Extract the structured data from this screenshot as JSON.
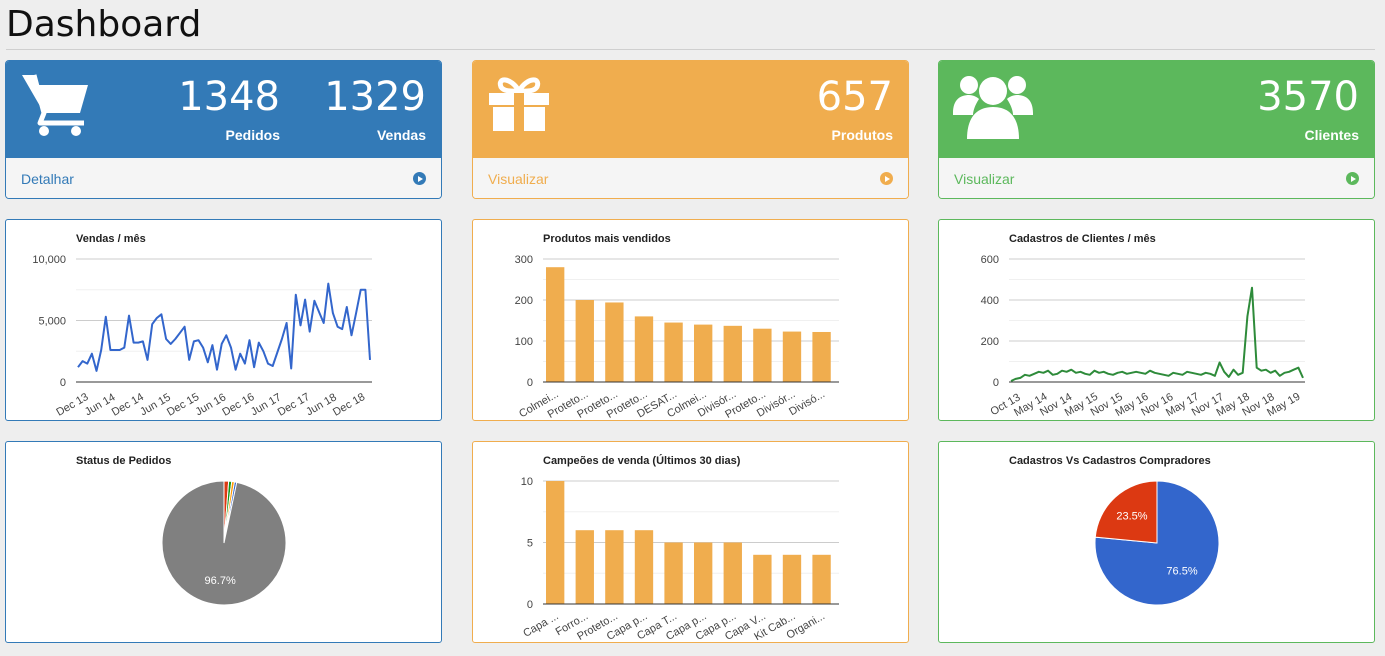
{
  "page": {
    "title": "Dashboard"
  },
  "stats": {
    "pedidos": {
      "value": "1348",
      "label": "Pedidos"
    },
    "vendas": {
      "value": "1329",
      "label": "Vendas"
    },
    "detalhar_link": "Detalhar",
    "produtos": {
      "value": "657",
      "label": "Produtos",
      "link": "Visualizar"
    },
    "clientes": {
      "value": "3570",
      "label": "Clientes",
      "link": "Visualizar"
    }
  },
  "icons": {
    "pedidos": "shopping-cart-icon",
    "produtos": "gift-icon",
    "clientes": "users-icon",
    "link_arrow": "arrow-circle-right-icon"
  },
  "colors": {
    "primary": "#337ab7",
    "warning": "#f0ad4e",
    "success": "#5cb85c",
    "line_sales": "#3366cc",
    "line_clients": "#2e8b3a",
    "pie_gray": "#808080",
    "pie_blue": "#3366cc",
    "pie_red": "#dc3912"
  },
  "chart_data": [
    {
      "id": "vendas_mes",
      "type": "line",
      "title": "Vendas / mês",
      "ylim": [
        0,
        10000
      ],
      "yticks": [
        0,
        5000,
        10000
      ],
      "ytick_labels": [
        "0",
        "5,000",
        "10,000"
      ],
      "xtick_labels": [
        "Dec 13",
        "Jun 14",
        "Dec 14",
        "Jun 15",
        "Dec 15",
        "Jun 16",
        "Dec 16",
        "Jun 17",
        "Dec 17",
        "Jun 18",
        "Dec 18"
      ],
      "values": [
        1200,
        1700,
        1500,
        2300,
        900,
        2600,
        5300,
        2600,
        2600,
        2600,
        2800,
        5400,
        3200,
        3200,
        3300,
        1800,
        4700,
        5200,
        5500,
        3500,
        3100,
        3500,
        4000,
        4500,
        1800,
        3300,
        3400,
        2800,
        1600,
        3000,
        1000,
        3100,
        3800,
        2800,
        1000,
        2300,
        1500,
        3400,
        1200,
        3200,
        2500,
        1500,
        1300,
        2400,
        3500,
        4800,
        1100,
        7100,
        4600,
        6700,
        4100,
        6600,
        5700,
        4800,
        8000,
        5600,
        4500,
        4300,
        6100,
        3800,
        5600,
        7500,
        7500,
        1800
      ],
      "grid": true
    },
    {
      "id": "produtos_mais_vendidos",
      "type": "bar",
      "title": "Produtos mais vendidos",
      "ylim": [
        0,
        300
      ],
      "yticks": [
        0,
        100,
        200,
        300
      ],
      "categories": [
        "Colmei...",
        "Proteto...",
        "Proteto...",
        "Proteto...",
        "DESAT...",
        "Colmei...",
        "Divisór...",
        "Proteto...",
        "Divisór...",
        "Divisó..."
      ],
      "values": [
        280,
        200,
        194,
        160,
        145,
        140,
        137,
        130,
        123,
        122
      ],
      "grid": true
    },
    {
      "id": "cadastros_clientes_mes",
      "type": "line",
      "title": "Cadastros de Clientes / mês",
      "ylim": [
        0,
        600
      ],
      "yticks": [
        0,
        200,
        400,
        600
      ],
      "xtick_labels": [
        "Oct 13",
        "May 14",
        "Nov 14",
        "May 15",
        "Nov 15",
        "May 16",
        "Nov 16",
        "May 17",
        "Nov 17",
        "May 18",
        "Nov 18",
        "May 19"
      ],
      "values": [
        5,
        15,
        20,
        35,
        30,
        40,
        50,
        45,
        55,
        35,
        40,
        55,
        50,
        60,
        45,
        50,
        40,
        35,
        55,
        45,
        50,
        40,
        35,
        45,
        50,
        40,
        45,
        50,
        45,
        40,
        55,
        45,
        40,
        35,
        30,
        45,
        40,
        35,
        50,
        45,
        40,
        35,
        45,
        40,
        30,
        95,
        50,
        25,
        60,
        35,
        45,
        320,
        460,
        70,
        55,
        60,
        45,
        55,
        30,
        45,
        50,
        60,
        70,
        20
      ],
      "grid": true
    },
    {
      "id": "status_pedidos",
      "type": "pie",
      "title": "Status de Pedidos",
      "slices": [
        {
          "value": 96.7,
          "label": "96.7%",
          "color": "#808080"
        },
        {
          "value": 1.2,
          "label": "",
          "color": "#dc3912"
        },
        {
          "value": 0.8,
          "label": "",
          "color": "#109618"
        },
        {
          "value": 0.7,
          "label": "",
          "color": "#ff9900"
        },
        {
          "value": 0.6,
          "label": "",
          "color": "#3366cc"
        }
      ]
    },
    {
      "id": "campeoes_venda",
      "type": "bar",
      "title": "Campeões de venda (Últimos 30 dias)",
      "ylim": [
        0,
        10
      ],
      "yticks": [
        0,
        5,
        10
      ],
      "categories": [
        "Capa ...",
        "Forro...",
        "Proteto...",
        "Capa p...",
        "Capa T...",
        "Capa p...",
        "Capa p...",
        "Capa V...",
        "Kit Cab...",
        "Organi..."
      ],
      "values": [
        10,
        6,
        6,
        6,
        5,
        5,
        5,
        4,
        4,
        4
      ],
      "grid": true
    },
    {
      "id": "cadastros_vs_compradores",
      "type": "pie",
      "title": "Cadastros Vs Cadastros Compradores",
      "slices": [
        {
          "value": 76.5,
          "label": "76.5%",
          "color": "#3366cc"
        },
        {
          "value": 23.5,
          "label": "23.5%",
          "color": "#dc3912"
        }
      ]
    }
  ]
}
